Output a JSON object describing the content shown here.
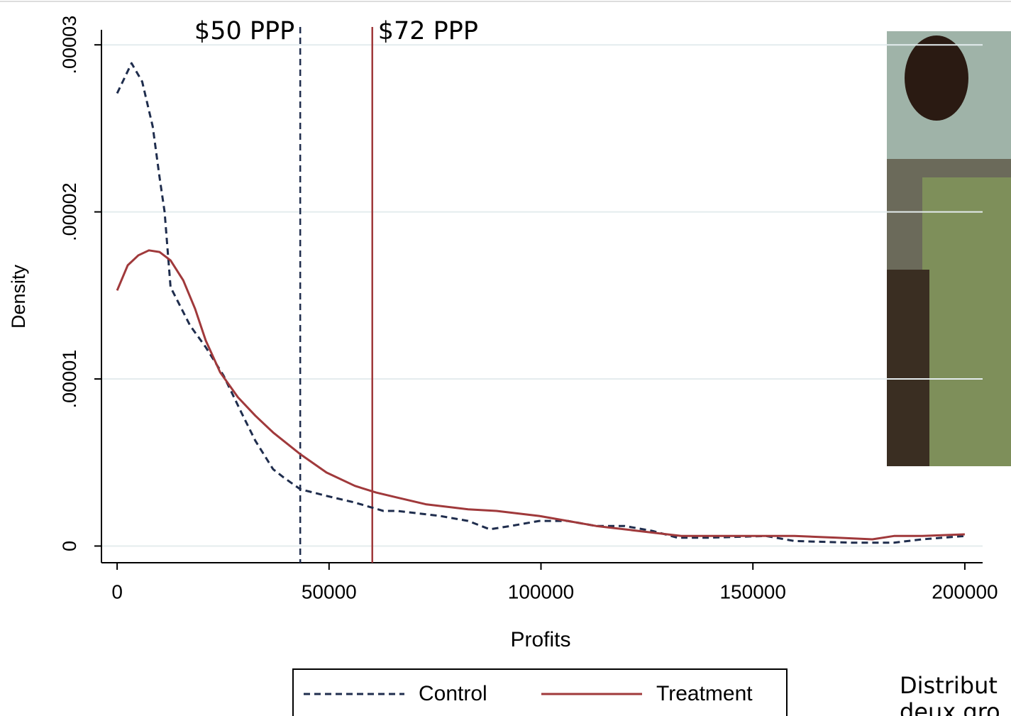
{
  "chart_data": {
    "type": "line",
    "xlabel": "Profits",
    "ylabel": "Density",
    "xlim": [
      -3700,
      204200
    ],
    "ylim": [
      -1e-06,
      3.09e-05
    ],
    "xticks": [
      0,
      50000,
      100000,
      150000,
      200000
    ],
    "yticks": [
      0,
      {
        "value": 1e-05,
        "label": ".00001"
      },
      {
        "value": 2e-05,
        "label": ".00002"
      },
      {
        "value": 3e-05,
        "label": ".00003"
      }
    ],
    "grid": true,
    "legend": "bottom",
    "series": [
      {
        "name": "Control",
        "color": "#1f2d4d",
        "style": "dashed",
        "x": [
          0,
          3400,
          5900,
          8400,
          10000,
          11200,
          12600,
          17200,
          20900,
          25100,
          29300,
          32600,
          36800,
          39300,
          43200,
          49400,
          56100,
          62800,
          66100,
          69500,
          76200,
          82800,
          87900,
          92900,
          99600,
          106300,
          113000,
          119700,
          126400,
          132200,
          139700,
          153100,
          159800,
          173200,
          183300,
          190000,
          200000
        ],
        "values": [
          2.71e-05,
          2.89e-05,
          2.78e-05,
          2.51e-05,
          2.21e-05,
          2e-05,
          1.55e-05,
          1.32e-05,
          1.19e-05,
          1.02e-05,
          8e-06,
          6.3e-06,
          4.6e-06,
          4.1e-06,
          3.4e-06,
          3e-06,
          2.6e-06,
          2.1e-06,
          2.1e-06,
          2e-06,
          1.8e-06,
          1.5e-06,
          1e-06,
          1.2e-06,
          1.5e-06,
          1.5e-06,
          1.2e-06,
          1.2e-06,
          9e-07,
          5e-07,
          5e-07,
          6e-07,
          3e-07,
          2e-07,
          2e-07,
          4e-07,
          6e-07
        ]
      },
      {
        "name": "Treatment",
        "color": "#a0393b",
        "style": "solid",
        "x": [
          0,
          2500,
          5000,
          7500,
          10000,
          12600,
          15600,
          18400,
          20900,
          24300,
          28500,
          32600,
          36800,
          43200,
          49400,
          56100,
          61100,
          66100,
          72800,
          82800,
          89500,
          99600,
          106300,
          113000,
          119700,
          126400,
          133100,
          139700,
          149800,
          159800,
          169900,
          178200,
          183300,
          190000,
          200000
        ],
        "values": [
          1.53e-05,
          1.68e-05,
          1.74e-05,
          1.77e-05,
          1.76e-05,
          1.71e-05,
          1.59e-05,
          1.42e-05,
          1.23e-05,
          1.04e-05,
          8.9e-06,
          7.8e-06,
          6.8e-06,
          5.5e-06,
          4.4e-06,
          3.6e-06,
          3.2e-06,
          2.9e-06,
          2.5e-06,
          2.2e-06,
          2.1e-06,
          1.8e-06,
          1.5e-06,
          1.2e-06,
          1e-06,
          8e-07,
          6e-07,
          6e-07,
          6e-07,
          6e-07,
          5e-07,
          4e-07,
          6e-07,
          6e-07,
          7e-07
        ]
      }
    ],
    "vlines": [
      {
        "x": 43200,
        "label": "$50 PPP",
        "color": "#1f2d4d",
        "style": "dashed",
        "side": "left"
      },
      {
        "x": 60200,
        "label": "$72 PPP",
        "color": "#a0393b",
        "style": "solid",
        "side": "right"
      }
    ]
  },
  "side_text": {
    "lines": [
      "Distribut",
      "deux gro"
    ]
  }
}
